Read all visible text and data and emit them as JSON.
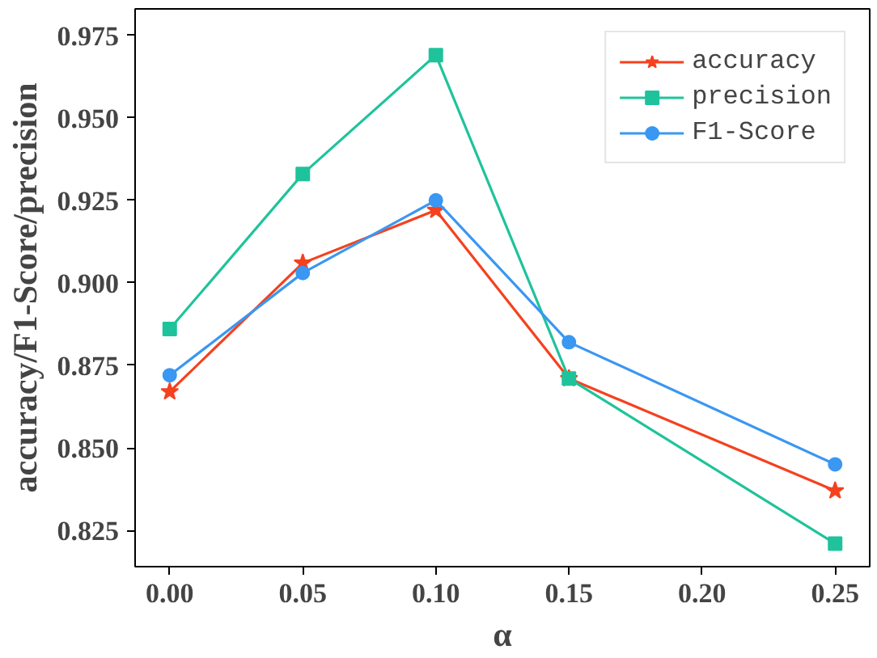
{
  "chart_data": {
    "type": "line",
    "xlabel": "α",
    "ylabel": "accuracy/F1-Score/precision",
    "x": [
      0.0,
      0.05,
      0.1,
      0.15,
      0.25
    ],
    "series": [
      {
        "name": "accuracy",
        "color": "#f5411e",
        "marker": "star",
        "values": [
          0.867,
          0.906,
          0.922,
          0.871,
          0.837
        ]
      },
      {
        "name": "precision",
        "color": "#1fc39b",
        "marker": "square",
        "values": [
          0.886,
          0.933,
          0.969,
          0.871,
          0.821
        ]
      },
      {
        "name": "F1-Score",
        "color": "#3a97f2",
        "marker": "circle",
        "values": [
          0.872,
          0.903,
          0.925,
          0.882,
          0.845
        ]
      }
    ],
    "xlim": [
      -0.013,
      0.263
    ],
    "ylim": [
      0.814,
      0.983
    ],
    "xticks": [
      {
        "value": 0.0,
        "label": "0.00"
      },
      {
        "value": 0.05,
        "label": "0.05"
      },
      {
        "value": 0.1,
        "label": "0.10"
      },
      {
        "value": 0.15,
        "label": "0.15"
      },
      {
        "value": 0.2,
        "label": "0.20"
      },
      {
        "value": 0.25,
        "label": "0.25"
      }
    ],
    "yticks": [
      0.825,
      {
        "value": 0.85,
        "label": "0.850"
      },
      0.875,
      {
        "value": 0.9,
        "label": "0.900"
      },
      0.925,
      {
        "value": 0.95,
        "label": "0.950"
      },
      0.975
    ],
    "grid": false,
    "legend": "top right",
    "line_style": "solid"
  }
}
